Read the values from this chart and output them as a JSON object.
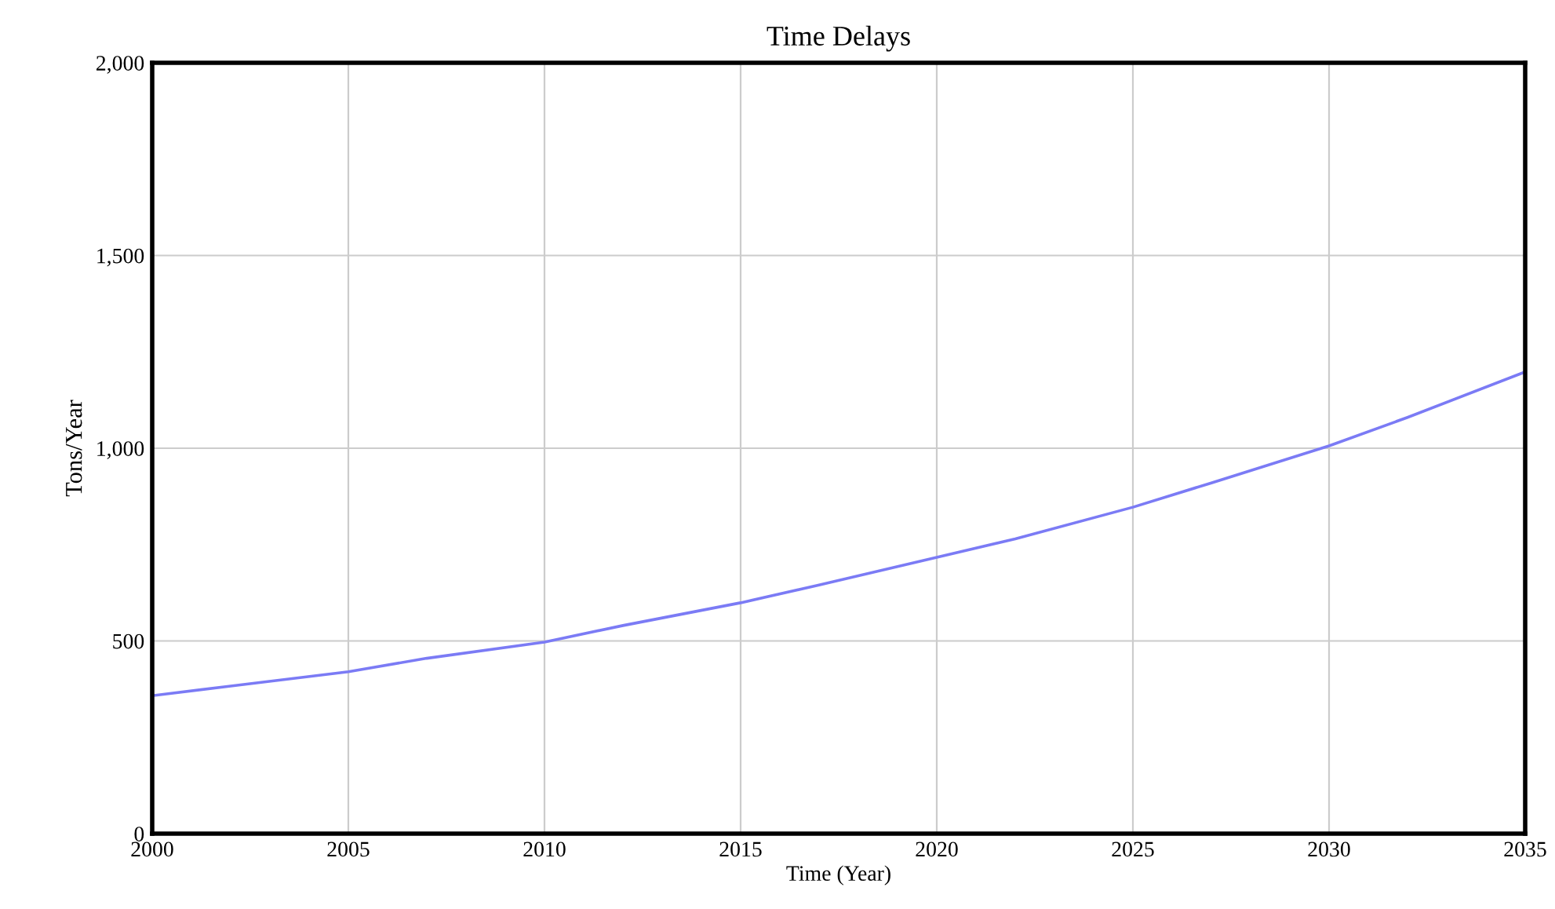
{
  "chart_data": {
    "type": "line",
    "title": "Time Delays",
    "xlabel": "Time (Year)",
    "ylabel": "Tons/Year",
    "x": [
      2000,
      2002,
      2005,
      2007,
      2010,
      2012,
      2015,
      2017,
      2020,
      2022,
      2025,
      2027,
      2030,
      2032,
      2035
    ],
    "series": [
      {
        "color": "#7b7bf5",
        "values": [
          358,
          383,
          420,
          455,
          497,
          540,
          599,
          645,
          717,
          765,
          847,
          910,
          1006,
          1080,
          1198
        ]
      }
    ],
    "xlim": [
      2000,
      2035
    ],
    "xticks": [
      2000,
      2005,
      2010,
      2015,
      2020,
      2025,
      2030,
      2035
    ],
    "ylim": [
      0,
      2000
    ],
    "yticks": [
      {
        "value": 0,
        "label": "0"
      },
      {
        "value": 500,
        "label": "500"
      },
      {
        "value": 1000,
        "label": "1,000"
      },
      {
        "value": 1500,
        "label": "1,500"
      },
      {
        "value": 2000,
        "label": "2,000"
      }
    ],
    "grid": true,
    "marker": "none",
    "line_style": "solid"
  }
}
